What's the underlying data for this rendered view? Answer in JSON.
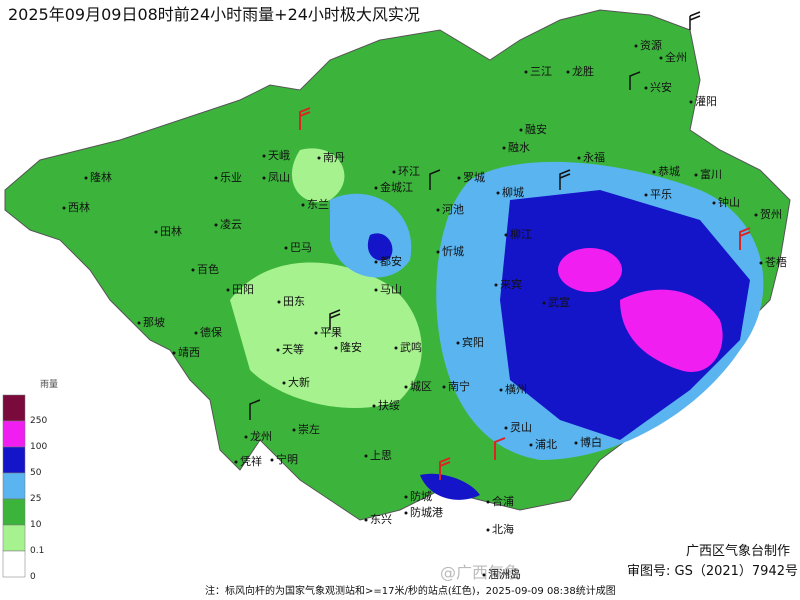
{
  "header": {
    "title": "2025年09月09日08时前24小时雨量+24小时极大风实况"
  },
  "legend": {
    "title": "雨量",
    "levels": [
      {
        "label": "250",
        "color": "#7a0a3c"
      },
      {
        "label": "100",
        "color": "#f01ef0"
      },
      {
        "label": "50",
        "color": "#1414c8"
      },
      {
        "label": "25",
        "color": "#5ab4f0"
      },
      {
        "label": "10",
        "color": "#3cb43c"
      },
      {
        "label": "0.1",
        "color": "#a6f28f"
      },
      {
        "label": "0",
        "color": "#ffffff"
      }
    ]
  },
  "cities": [
    "资源",
    "全州",
    "三江",
    "龙胜",
    "兴安",
    "灌阳",
    "融安",
    "融水",
    "永福",
    "恭城",
    "富川",
    "隆林",
    "天峨",
    "南丹",
    "乐业",
    "凤山",
    "东兰",
    "环江",
    "金城江",
    "罗城",
    "柳城",
    "平乐",
    "钟山",
    "贺州",
    "西林",
    "田林",
    "凌云",
    "巴马",
    "河池",
    "柳江",
    "忻城",
    "都安",
    "百色",
    "田阳",
    "田东",
    "马山",
    "来宾",
    "武宣",
    "苍梧",
    "那坡",
    "德保",
    "靖西",
    "平果",
    "天等",
    "隆安",
    "武鸣",
    "宾阳",
    "大新",
    "城区",
    "南宁",
    "横州",
    "龙州",
    "崇左",
    "扶绥",
    "凭祥",
    "宁明",
    "上思",
    "灵山",
    "浦北",
    "博白",
    "防城",
    "东兴",
    "防城港",
    "合浦",
    "北海",
    "涠洲岛"
  ],
  "footer": {
    "producer": "广西区气象台制作",
    "approval": "审图号: GS（2021）7942号",
    "note": "注：标风向杆的为国家气象观测站和>=17米/秒的站点(红色)，2025-09-09 08:38统计成图",
    "watermark": "@广西气象"
  }
}
